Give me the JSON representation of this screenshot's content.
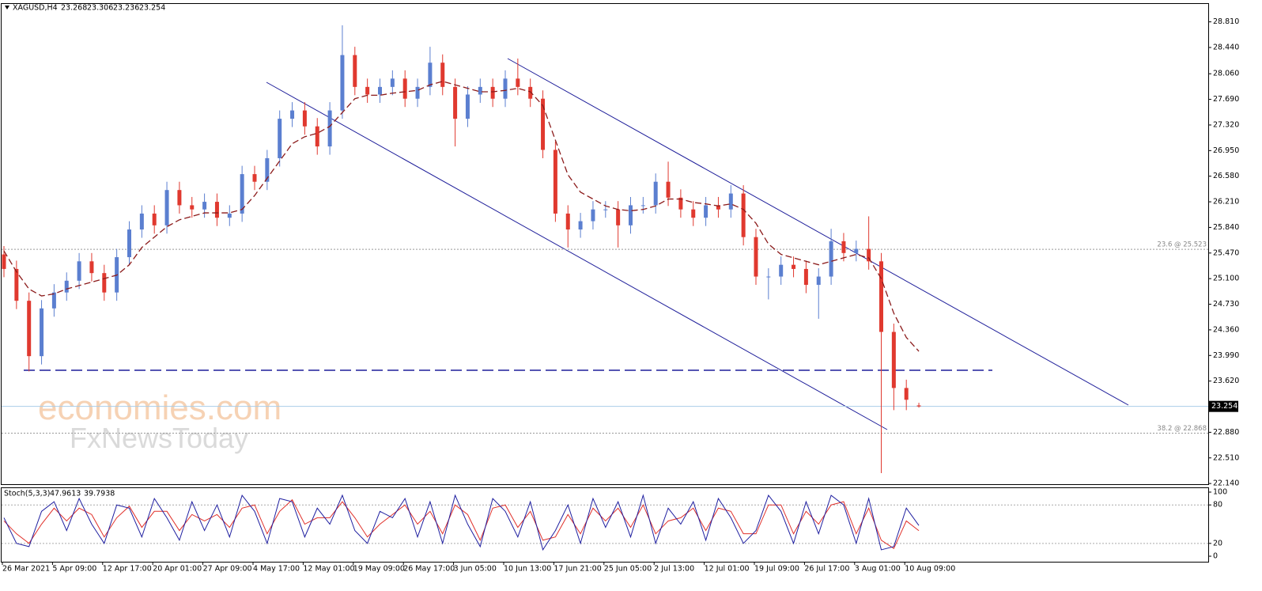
{
  "chart_data": [
    {
      "type": "candlestick",
      "title": "XAGUSD,H4",
      "watermark": [
        "economies.com",
        "FxNewsToday"
      ],
      "categories": [
        "26 Mar 2021",
        null,
        null,
        null,
        "5 Apr 09:00",
        null,
        null,
        null,
        "12 Apr 17:00",
        null,
        null,
        null,
        "20 Apr 01:00",
        null,
        null,
        null,
        "27 Apr 09:00",
        null,
        null,
        null,
        "4 May 17:00",
        null,
        null,
        null,
        "12 May 01:00",
        null,
        null,
        null,
        "19 May 09:00",
        null,
        null,
        null,
        "26 May 17:00",
        null,
        null,
        null,
        "3 Jun 05:00",
        null,
        null,
        null,
        "10 Jun 13:00",
        null,
        null,
        null,
        "17 Jun 21:00",
        null,
        null,
        null,
        "25 Jun 05:00",
        null,
        null,
        null,
        "2 Jul 13:00",
        null,
        null,
        null,
        "12 Jul 01:00",
        null,
        null,
        null,
        "19 Jul 09:00",
        null,
        null,
        null,
        "26 Jul 17:00",
        null,
        null,
        null,
        "3 Aug 01:00",
        null,
        null,
        null,
        "10 Aug 09:00",
        null
      ],
      "open": [
        25.45,
        25.24,
        24.78,
        23.98,
        24.67,
        24.9,
        25.07,
        25.35,
        25.18,
        24.9,
        25.41,
        25.81,
        26.04,
        25.87,
        26.38,
        26.16,
        26.1,
        26.21,
        25.98,
        26.04,
        26.61,
        26.5,
        26.84,
        27.41,
        27.53,
        27.3,
        27.01,
        27.53,
        28.33,
        27.87,
        27.76,
        27.87,
        27.99,
        27.7,
        27.87,
        28.22,
        27.87,
        27.41,
        27.76,
        27.87,
        27.7,
        27.99,
        27.87,
        27.7,
        26.96,
        26.04,
        25.81,
        25.93,
        26.1,
        26.1,
        25.87,
        26.16,
        26.16,
        26.5,
        26.27,
        26.1,
        25.98,
        26.16,
        26.1,
        26.33,
        25.7,
        25.13,
        25.13,
        25.3,
        25.24,
        25.01,
        25.13,
        25.64,
        25.47,
        25.53,
        25.35,
        24.33,
        23.52,
        23.268
      ],
      "high": [
        25.57,
        25.36,
        24.9,
        24.79,
        25.02,
        25.19,
        25.47,
        25.47,
        25.3,
        25.53,
        25.93,
        26.16,
        26.16,
        26.5,
        26.5,
        26.28,
        26.33,
        26.33,
        26.16,
        26.73,
        26.73,
        26.96,
        27.53,
        27.65,
        27.65,
        27.42,
        27.65,
        28.76,
        28.45,
        27.99,
        27.99,
        28.11,
        28.11,
        27.99,
        28.45,
        28.34,
        27.99,
        27.88,
        27.99,
        27.99,
        28.11,
        28.28,
        27.99,
        27.82,
        27.08,
        26.16,
        26.05,
        26.22,
        26.22,
        26.22,
        26.28,
        26.28,
        26.62,
        26.79,
        26.39,
        26.22,
        26.28,
        26.28,
        26.45,
        26.45,
        25.82,
        25.25,
        25.42,
        25.42,
        25.36,
        25.25,
        25.82,
        25.76,
        25.65,
        26.0,
        25.47,
        24.45,
        23.64,
        23.306
      ],
      "low": [
        25.12,
        24.66,
        23.76,
        23.86,
        24.55,
        24.78,
        24.95,
        25.06,
        24.78,
        24.78,
        25.29,
        25.69,
        25.75,
        25.75,
        26.04,
        25.98,
        25.98,
        25.86,
        25.86,
        25.92,
        26.38,
        26.38,
        26.72,
        27.29,
        27.18,
        26.89,
        26.89,
        27.41,
        27.75,
        27.64,
        27.64,
        27.75,
        27.58,
        27.58,
        27.75,
        27.75,
        27.01,
        27.29,
        27.64,
        27.58,
        27.58,
        27.75,
        27.58,
        26.84,
        25.92,
        25.55,
        25.69,
        25.81,
        25.98,
        25.55,
        25.75,
        26.04,
        26.04,
        26.15,
        25.98,
        25.86,
        25.86,
        25.98,
        25.98,
        25.58,
        25.01,
        24.8,
        25.01,
        25.12,
        24.89,
        24.52,
        25.01,
        25.35,
        25.35,
        25.23,
        22.29,
        23.2,
        23.2,
        23.236
      ],
      "close": [
        25.24,
        24.78,
        23.98,
        24.67,
        24.9,
        25.07,
        25.35,
        25.18,
        24.9,
        25.41,
        25.81,
        26.04,
        25.87,
        26.38,
        26.16,
        26.1,
        26.21,
        25.98,
        26.04,
        26.61,
        26.5,
        26.84,
        27.41,
        27.53,
        27.3,
        27.01,
        27.53,
        28.33,
        27.87,
        27.76,
        27.87,
        27.99,
        27.7,
        27.87,
        28.22,
        27.87,
        27.41,
        27.76,
        27.87,
        27.7,
        27.99,
        27.87,
        27.7,
        26.96,
        26.04,
        25.81,
        25.93,
        26.1,
        26.1,
        25.87,
        26.16,
        26.16,
        26.5,
        26.27,
        26.1,
        25.98,
        26.16,
        26.1,
        26.33,
        25.7,
        25.13,
        25.13,
        25.3,
        25.24,
        25.01,
        25.13,
        25.64,
        25.47,
        25.53,
        25.35,
        24.33,
        23.52,
        23.35,
        23.254
      ],
      "up_color": "#5b7fd0",
      "down_color": "#e0392f",
      "overlay": {
        "color": "#8b1a1a",
        "values": [
          25.5,
          25.2,
          24.95,
          24.85,
          24.88,
          24.95,
          25.0,
          25.05,
          25.1,
          25.15,
          25.3,
          25.55,
          25.7,
          25.85,
          25.95,
          26.0,
          26.05,
          26.05,
          26.05,
          26.1,
          26.3,
          26.55,
          26.8,
          27.05,
          27.15,
          27.2,
          27.3,
          27.5,
          27.7,
          27.75,
          27.75,
          27.78,
          27.8,
          27.82,
          27.9,
          27.95,
          27.9,
          27.85,
          27.8,
          27.8,
          27.82,
          27.85,
          27.8,
          27.6,
          27.1,
          26.6,
          26.35,
          26.25,
          26.15,
          26.1,
          26.08,
          26.1,
          26.15,
          26.25,
          26.25,
          26.2,
          26.18,
          26.15,
          26.18,
          26.1,
          25.9,
          25.6,
          25.45,
          25.4,
          25.35,
          25.3,
          25.35,
          25.4,
          25.45,
          25.4,
          25.1,
          24.6,
          24.25,
          24.05
        ]
      },
      "levels": [
        {
          "label": "23.6 @ 25.523",
          "value": 25.523
        },
        {
          "label": "38.2 @ 22.868",
          "value": 22.868
        }
      ],
      "ylim": [
        22.13,
        29.08
      ],
      "yticks": [
        {
          "value": 28.81,
          "label": "28.810"
        },
        {
          "value": 28.44,
          "label": "28.440"
        },
        {
          "value": 28.06,
          "label": "28.060"
        },
        {
          "value": 27.69,
          "label": "27.690"
        },
        {
          "value": 27.32,
          "label": "27.320"
        },
        {
          "value": 26.95,
          "label": "26.950"
        },
        {
          "value": 26.58,
          "label": "26.580"
        },
        {
          "value": 26.21,
          "label": "26.210"
        },
        {
          "value": 25.84,
          "label": "25.840"
        },
        {
          "value": 25.47,
          "label": "25.470"
        },
        {
          "value": 25.1,
          "label": "25.100"
        },
        {
          "value": 24.73,
          "label": "24.730"
        },
        {
          "value": 24.36,
          "label": "24.360"
        },
        {
          "value": 23.99,
          "label": "23.990"
        },
        {
          "value": 23.62,
          "label": "23.620"
        },
        {
          "value": 22.88,
          "label": "22.880"
        },
        {
          "value": 22.51,
          "label": "22.510"
        },
        {
          "value": 22.14,
          "label": "22.140"
        }
      ]
    },
    {
      "type": "line",
      "title": "Stoch(5,3,3)",
      "series": [
        {
          "color": "#1f1fa0",
          "values": [
            60,
            20,
            15,
            70,
            85,
            40,
            90,
            50,
            20,
            80,
            75,
            30,
            90,
            60,
            25,
            85,
            40,
            80,
            30,
            95,
            70,
            20,
            90,
            85,
            30,
            75,
            50,
            95,
            40,
            20,
            70,
            60,
            90,
            30,
            85,
            20,
            95,
            50,
            15,
            90,
            70,
            30,
            85,
            10,
            40,
            80,
            20,
            90,
            45,
            85,
            30,
            95,
            20,
            75,
            50,
            85,
            25,
            90,
            60,
            20,
            40,
            95,
            70,
            20,
            85,
            35,
            95,
            80,
            20,
            90,
            10,
            15,
            75,
            47.9613
          ]
        },
        {
          "color": "#e0302a",
          "values": [
            55,
            35,
            20,
            50,
            75,
            55,
            75,
            65,
            30,
            60,
            78,
            45,
            70,
            70,
            40,
            65,
            55,
            65,
            45,
            75,
            80,
            35,
            70,
            88,
            50,
            60,
            60,
            85,
            60,
            30,
            50,
            65,
            80,
            50,
            70,
            35,
            80,
            65,
            25,
            75,
            80,
            45,
            70,
            25,
            30,
            65,
            35,
            75,
            55,
            75,
            45,
            80,
            35,
            55,
            60,
            75,
            40,
            75,
            70,
            35,
            35,
            80,
            80,
            35,
            70,
            50,
            80,
            85,
            35,
            75,
            25,
            12,
            55,
            39.7938
          ]
        }
      ],
      "ylim": [
        -8.6,
        107.4
      ],
      "yticks": [
        100,
        80,
        20,
        0
      ]
    }
  ]
}
